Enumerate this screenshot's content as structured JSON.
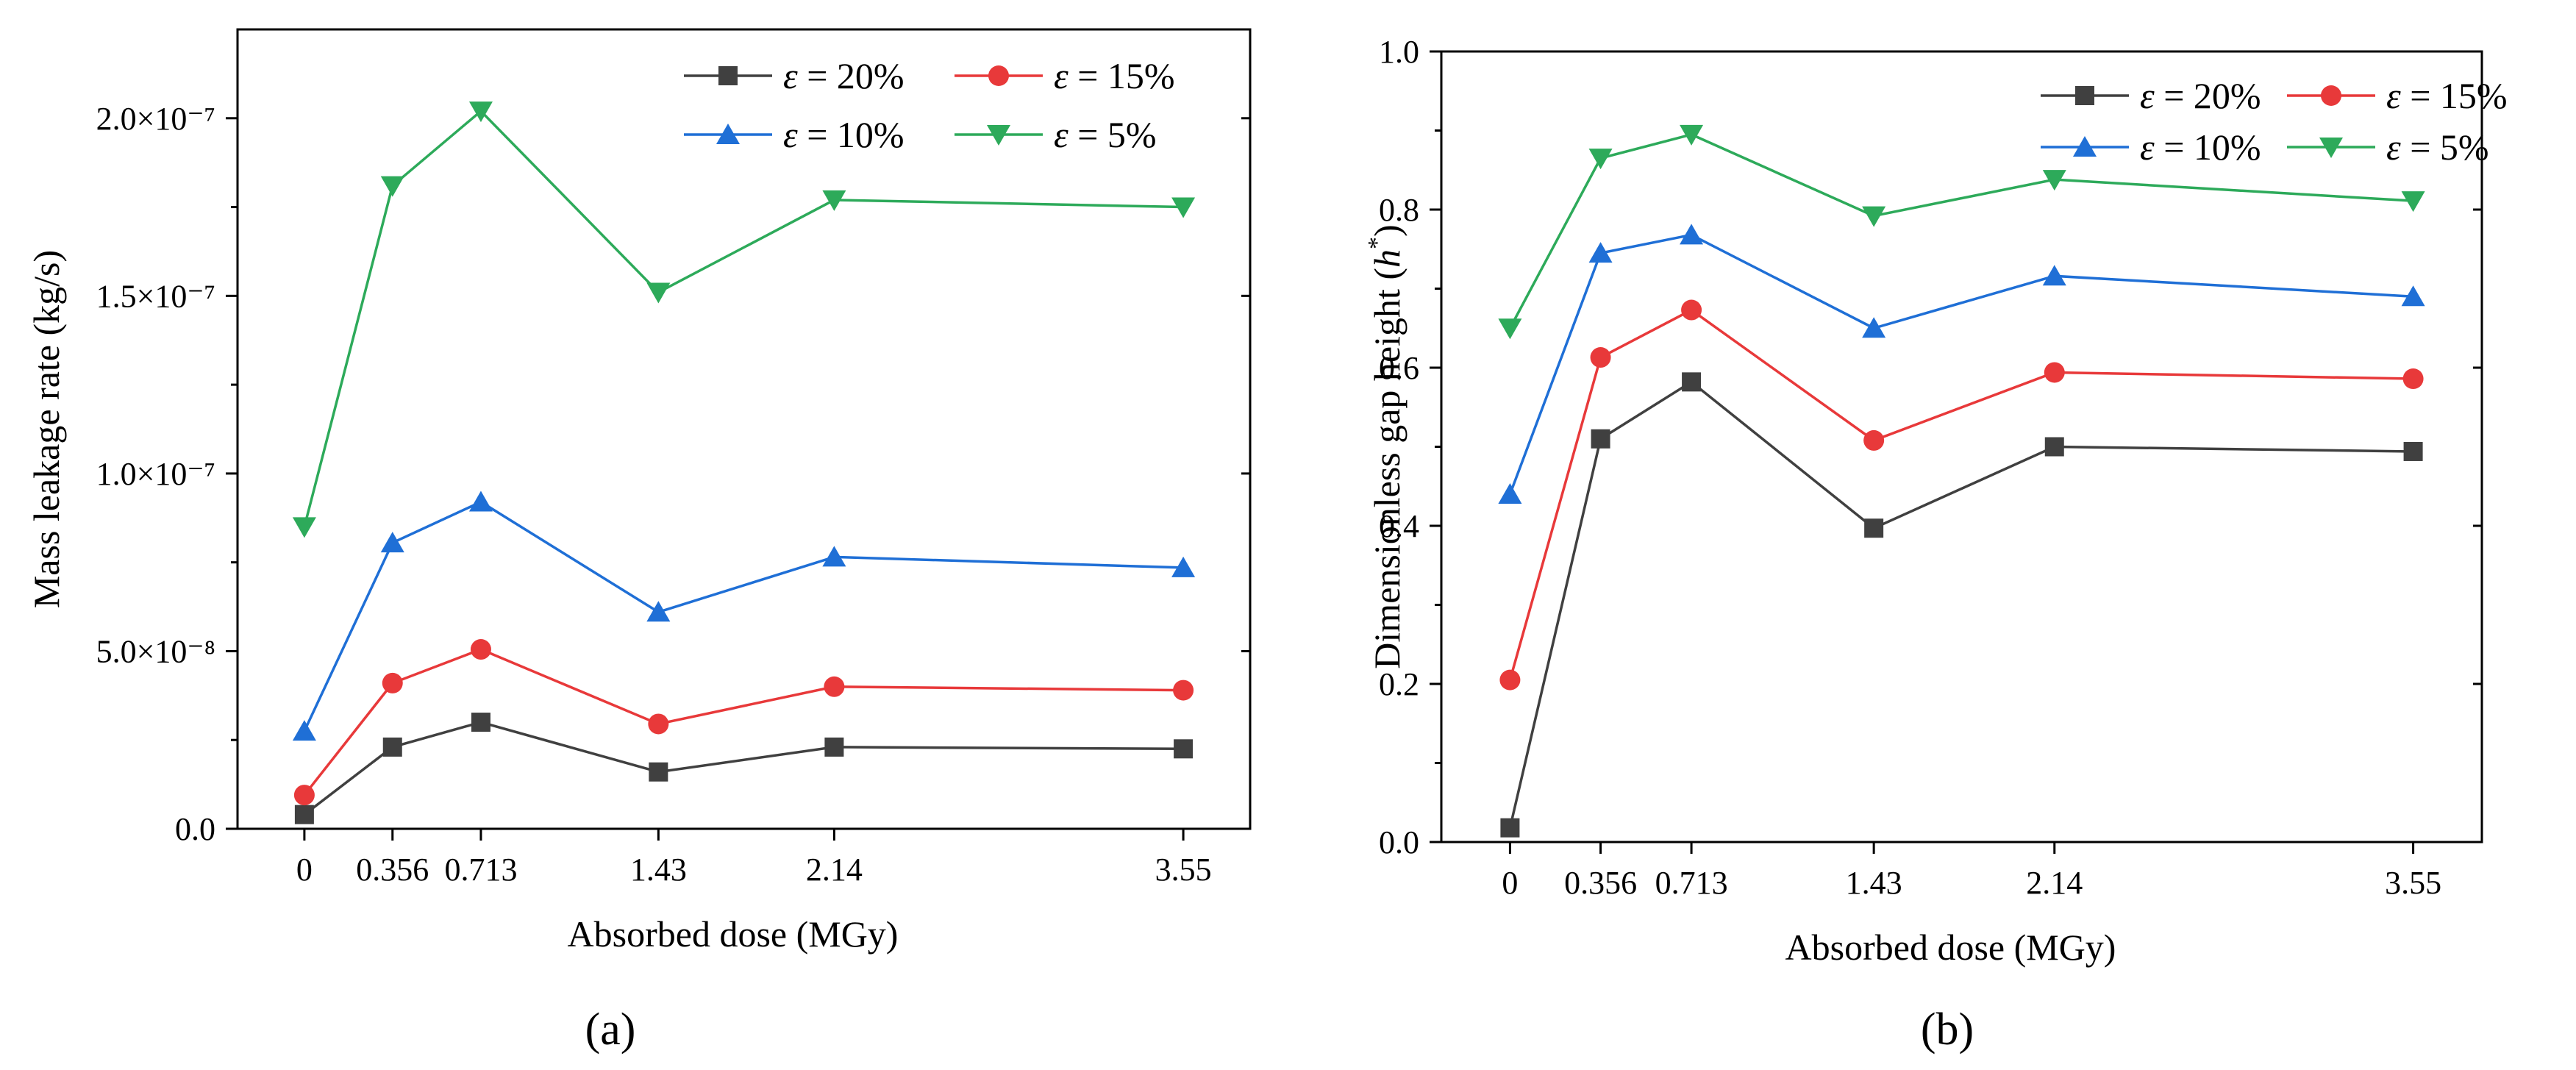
{
  "chart_data": [
    {
      "type": "line",
      "panel_label": "(a)",
      "title": "",
      "xlabel": "Absorbed dose (MGy)",
      "ylabel": "Mass leakage rate (kg/s)",
      "x": [
        0,
        0.356,
        0.713,
        1.43,
        2.14,
        3.55
      ],
      "x_tick_labels": [
        "0",
        "0.356",
        "0.713",
        "1.43",
        "2.14",
        "3.55"
      ],
      "xlim": [
        -0.27,
        3.82
      ],
      "ylim": [
        0,
        2.25e-07
      ],
      "y_ticks": [
        0,
        5e-08,
        1e-07,
        1.5e-07,
        2e-07
      ],
      "y_tick_labels": [
        "0.0",
        "5.0×10⁻⁸",
        "1.0×10⁻⁷",
        "1.5×10⁻⁷",
        "2.0×10⁻⁷"
      ],
      "legend_position": "top-right",
      "series": [
        {
          "name": "ε = 20%",
          "symbol": "ε",
          "label_rest": " = 20%",
          "marker": "square",
          "color": "#404040",
          "values": [
            4e-09,
            2.3e-08,
            3e-08,
            1.6e-08,
            2.3e-08,
            2.25e-08
          ]
        },
        {
          "name": "ε = 15%",
          "symbol": "ε",
          "label_rest": " = 15%",
          "marker": "circle",
          "color": "#e8393a",
          "values": [
            9.5e-09,
            4.1e-08,
            5.05e-08,
            2.95e-08,
            4e-08,
            3.9e-08
          ]
        },
        {
          "name": "ε = 10%",
          "symbol": "ε",
          "label_rest": " = 10%",
          "marker": "triangle-up",
          "color": "#1f6fd6",
          "values": [
            2.75e-08,
            8.05e-08,
            9.2e-08,
            6.1e-08,
            7.65e-08,
            7.35e-08
          ]
        },
        {
          "name": "ε = 5%",
          "symbol": "ε",
          "label_rest": " = 5%",
          "marker": "triangle-down",
          "color": "#2daa5a",
          "values": [
            8.5e-08,
            1.81e-07,
            2.02e-07,
            1.51e-07,
            1.77e-07,
            1.75e-07
          ]
        }
      ]
    },
    {
      "type": "line",
      "panel_label": "(b)",
      "title": "",
      "xlabel": "Absorbed dose (MGy)",
      "ylabel": "Dimensionless gap height (h*)",
      "ylabel_main": "Dimensionless gap height (",
      "ylabel_var": "h",
      "ylabel_sup": "*",
      "ylabel_end": ")",
      "x": [
        0,
        0.356,
        0.713,
        1.43,
        2.14,
        3.55
      ],
      "x_tick_labels": [
        "0",
        "0.356",
        "0.713",
        "1.43",
        "2.14",
        "3.55"
      ],
      "xlim": [
        -0.27,
        3.82
      ],
      "ylim": [
        0,
        1.0
      ],
      "y_ticks": [
        0,
        0.2,
        0.4,
        0.6,
        0.8,
        1.0
      ],
      "y_tick_labels": [
        "0.0",
        "0.2",
        "0.4",
        "0.6",
        "0.8",
        "1.0"
      ],
      "legend_position": "top-right",
      "series": [
        {
          "name": "ε = 20%",
          "symbol": "ε",
          "label_rest": " = 20%",
          "marker": "square",
          "color": "#404040",
          "values": [
            0.018,
            0.51,
            0.582,
            0.397,
            0.5,
            0.494
          ]
        },
        {
          "name": "ε = 15%",
          "symbol": "ε",
          "label_rest": " = 15%",
          "marker": "circle",
          "color": "#e8393a",
          "values": [
            0.205,
            0.613,
            0.673,
            0.508,
            0.594,
            0.586
          ]
        },
        {
          "name": "ε = 10%",
          "symbol": "ε",
          "label_rest": " = 10%",
          "marker": "triangle-up",
          "color": "#1f6fd6",
          "values": [
            0.44,
            0.745,
            0.768,
            0.65,
            0.716,
            0.69
          ]
        },
        {
          "name": "ε = 5%",
          "symbol": "ε",
          "label_rest": " = 5%",
          "marker": "triangle-down",
          "color": "#2daa5a",
          "values": [
            0.65,
            0.865,
            0.895,
            0.792,
            0.838,
            0.811
          ]
        }
      ]
    }
  ]
}
